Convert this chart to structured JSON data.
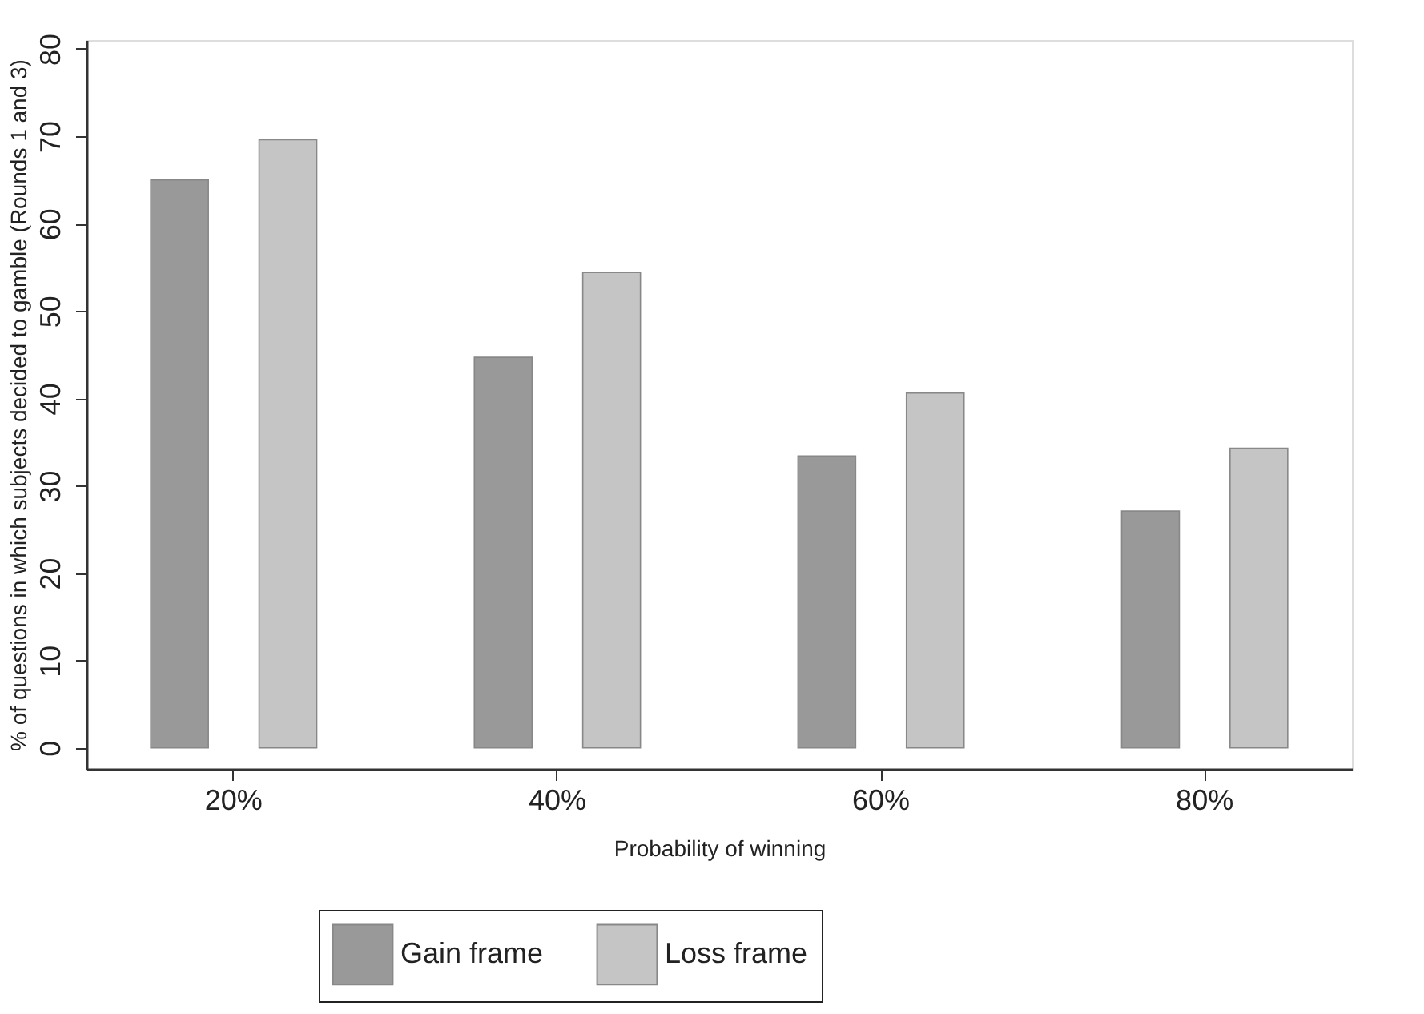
{
  "chart_data": {
    "type": "bar",
    "xlabel": "Probability of winning",
    "ylabel": "% of questions in which subjects decided to gamble (Rounds 1 and 3)",
    "categories": [
      "20%",
      "40%",
      "60%",
      "80%"
    ],
    "series": [
      {
        "name": "Gain frame",
        "color": "#999999",
        "values": [
          65.0,
          44.7,
          33.4,
          27.1
        ]
      },
      {
        "name": "Loss frame",
        "color": "#c4c5c4",
        "values": [
          69.6,
          54.4,
          40.6,
          34.3
        ]
      }
    ],
    "ylim": [
      -2.4,
      81
    ],
    "yticks": [
      0,
      10,
      20,
      30,
      40,
      50,
      60,
      70,
      80
    ],
    "grid": false,
    "legend": "bottom"
  }
}
